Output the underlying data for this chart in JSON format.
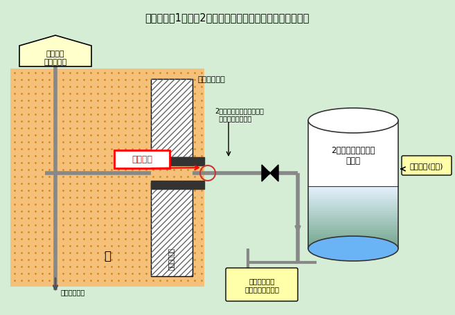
{
  "title": "伊方発電所1号機　2次系ブローダウンタンクまわり概略図",
  "bg_color": "#d4edd4",
  "label_deaer": "脱気器室\n屋内消火栓",
  "label_current": "当該箇所",
  "label_turbine_bldg": "タービン建家",
  "label_tank": "2次系ブローダウン\nタンク",
  "label_pipe": "2次系ブローダウンタンク\n  排水冷却用水配管",
  "label_drain": "ドレン水(高温)",
  "label_pit": "タービン建家\n非常用排水ピット",
  "label_fire_water": "消火用水系統",
  "label_concrete": "コンクリート",
  "label_soil": "土"
}
